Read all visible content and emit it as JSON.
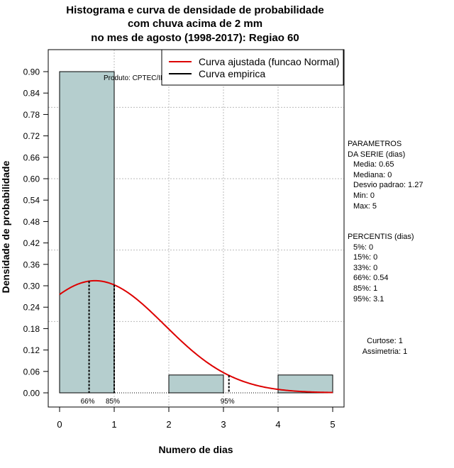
{
  "title_lines": [
    "Histograma e curva de densidade de probabilidade",
    "com chuva acima de 2 mm",
    "no mes de agosto (1998-2017): Regiao 60"
  ],
  "chart_data": {
    "type": "bar",
    "title": "Histograma e curva de densidade de probabilidade com chuva acima de 2 mm no mes de agosto (1998-2017): Regiao 60",
    "xlabel": "Numero de dias",
    "ylabel": "Densidade de probabilidade",
    "xlim": [
      0,
      5
    ],
    "ylim": [
      0,
      0.96
    ],
    "x_ticks": [
      "0",
      "1",
      "2",
      "3",
      "4",
      "5"
    ],
    "y_ticks": [
      "0.00",
      "0.06",
      "0.12",
      "0.18",
      "0.24",
      "0.30",
      "0.36",
      "0.42",
      "0.48",
      "0.54",
      "0.60",
      "0.66",
      "0.72",
      "0.78",
      "0.84",
      "0.90"
    ],
    "bins": [
      {
        "from": 0,
        "to": 1,
        "density": 0.9
      },
      {
        "from": 1,
        "to": 2,
        "density": 0.0
      },
      {
        "from": 2,
        "to": 3,
        "density": 0.05
      },
      {
        "from": 3,
        "to": 4,
        "density": 0.0
      },
      {
        "from": 4,
        "to": 5,
        "density": 0.05
      }
    ],
    "bar_color": "#b5cece",
    "normal_curve": {
      "name": "Curva ajustada (funcao Normal)",
      "mean": 0.65,
      "sd": 1.27,
      "color": "#dd0000"
    },
    "empirical_curve": {
      "name": "Curva empirica",
      "color": "#000000"
    },
    "percentile_markers": [
      {
        "label": "66%",
        "x": 0.54
      },
      {
        "label": "85%",
        "x": 1
      },
      {
        "label": "95%",
        "x": 3.1
      }
    ],
    "grid": true,
    "legend_position": "top-right",
    "watermark": "Produto: CPTEC/INPE"
  },
  "params": {
    "heading1": "PARAMETROS",
    "heading2": "DA SERIE (dias)",
    "items": [
      "Media: 0.65",
      "Mediana: 0",
      "Desvio padrao: 1.27",
      "Min: 0",
      "Max: 5"
    ]
  },
  "percentis": {
    "heading": "PERCENTIS (dias)",
    "items": [
      "5%: 0",
      "15%: 0",
      "33%: 0",
      "66%: 0.54",
      "85%: 1",
      "95%: 3.1"
    ]
  },
  "shape": {
    "kurtosis": "Curtose: 1",
    "skewness": "Assimetria: 1"
  }
}
